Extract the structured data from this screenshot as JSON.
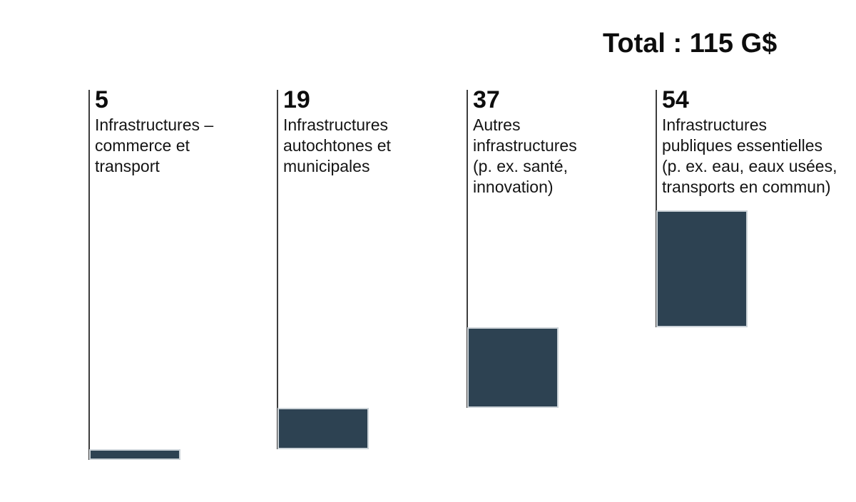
{
  "header": {
    "total_label": "Total : 115 G$"
  },
  "columns": [
    {
      "value": "5",
      "label": "Infrastructures –\ncommerce et\ntransport"
    },
    {
      "value": "19",
      "label": "Infrastructures\nautochtones et\nmunicipales"
    },
    {
      "value": "37",
      "label": "Autres\ninfrastructures\n(p. ex. santé,\ninnovation)"
    },
    {
      "value": "54",
      "label": "Infrastructures\npubliques essentielles\n(p. ex. eau, eaux usées,\ntransports en commun)"
    }
  ],
  "chart_data": {
    "type": "bar",
    "subtype": "waterfall",
    "title": "Total : 115 G$",
    "total": 115,
    "unit": "G$",
    "categories": [
      "Infrastructures – commerce et transport",
      "Infrastructures autochtones et municipales",
      "Autres infrastructures (p. ex. santé, innovation)",
      "Infrastructures publiques essentielles (p. ex. eau, eaux usées, transports en commun)"
    ],
    "values": [
      5,
      19,
      37,
      54
    ],
    "value_labels": [
      "5",
      "19",
      "37",
      "54"
    ],
    "orientation": "vertical",
    "stacking": "cumulative-offset",
    "axis": "none",
    "grid": false,
    "legend": "none"
  },
  "colors": {
    "bar_fill": "#2d4252",
    "bar_border": "#ccd3d8",
    "column_line": "#3d3d3d",
    "text": "#111111",
    "background": "#ffffff"
  }
}
